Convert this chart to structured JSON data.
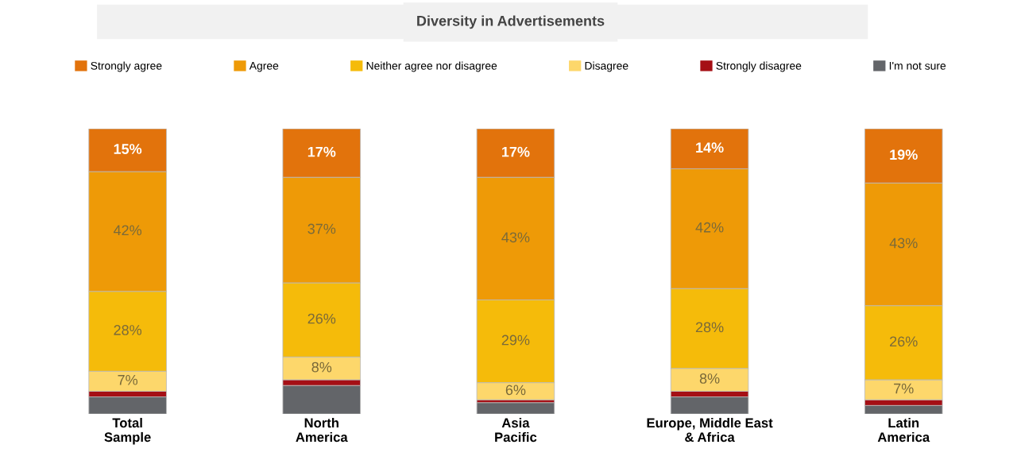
{
  "chart_data": {
    "type": "bar",
    "title": "Diversity in Advertisements",
    "stacked": true,
    "legend": "top",
    "data_labels": false,
    "ylim": [
      0,
      100
    ],
    "categories": [
      "Total\nSample",
      "North\nAmerica",
      "Asia\nPacific",
      "Europe, Middle East\n& Africa",
      "Latin\nAmerica"
    ],
    "series": [
      {
        "name": "I'm not sure",
        "color": "#636569",
        "values": [
          6,
          10,
          4,
          6,
          3
        ],
        "value_labels": [
          null,
          null,
          null,
          null,
          null
        ]
      },
      {
        "name": "Strongly disagree",
        "color": "#a50f15",
        "values": [
          2,
          2,
          1,
          2,
          2
        ],
        "value_labels": [
          null,
          null,
          null,
          null,
          null
        ]
      },
      {
        "name": "Disagree",
        "color": "#fdd76b",
        "values": [
          7,
          8,
          6,
          8,
          7
        ],
        "value_labels": [
          "7%",
          "8%",
          "6%",
          "8%",
          "7%"
        ]
      },
      {
        "name": "Neither agree nor disagree",
        "color": "#f5bb0a",
        "values": [
          28,
          26,
          29,
          28,
          26
        ],
        "value_labels": [
          "28%",
          "26%",
          "29%",
          "28%",
          "26%"
        ]
      },
      {
        "name": "Agree",
        "color": "#ee9a07",
        "values": [
          42,
          37,
          43,
          42,
          43
        ],
        "value_labels": [
          "42%",
          "37%",
          "43%",
          "42%",
          "43%"
        ]
      },
      {
        "name": "Strongly agree",
        "color": "#e2730c",
        "values": [
          15,
          17,
          17,
          14,
          19
        ],
        "value_labels": [
          "15%",
          "17%",
          "17%",
          "14%",
          "19%"
        ]
      }
    ]
  }
}
